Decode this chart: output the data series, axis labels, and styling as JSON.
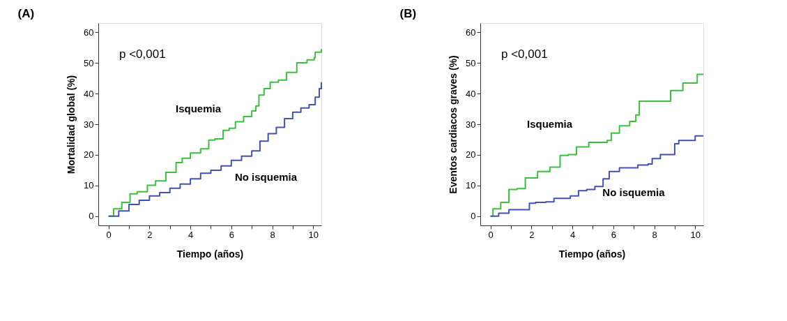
{
  "chart_data": [
    {
      "type": "step",
      "title": "(A)",
      "xlabel": "Tiempo (años)",
      "ylabel": "Mortalidad global (%)",
      "annotations": [
        "p <0,001"
      ],
      "xlim": [
        -0.5,
        10.4
      ],
      "ylim": [
        -3,
        63
      ],
      "xticks": [
        0,
        {
          "value": 1,
          "label": null
        },
        2,
        {
          "value": 3,
          "label": null
        },
        4,
        {
          "value": 5,
          "label": null
        },
        6,
        {
          "value": 7,
          "label": null
        },
        8,
        {
          "value": 9,
          "label": null
        },
        10
      ],
      "yticks": [
        0,
        10,
        20,
        30,
        40,
        50,
        60
      ],
      "grid": false,
      "line_style": "solid",
      "marker": "none",
      "series": [
        {
          "name": "Isquemia",
          "color": "#3cbf3c",
          "x": [
            0,
            0.25,
            0.65,
            1.05,
            1.4,
            1.9,
            2.3,
            2.8,
            3.3,
            3.6,
            4.0,
            4.5,
            4.9,
            5.2,
            5.6,
            5.9,
            6.2,
            6.6,
            7.0,
            7.2,
            7.35,
            7.6,
            7.9,
            8.3,
            8.7,
            9.2,
            9.7,
            10.05,
            10.1,
            10.4
          ],
          "values": [
            0,
            2.4,
            4.5,
            7.3,
            8.0,
            10.1,
            11.5,
            14.3,
            17.5,
            18.9,
            20.6,
            22.0,
            24.8,
            25.2,
            28.0,
            28.7,
            30.8,
            32.5,
            34.3,
            36.0,
            39.5,
            41.6,
            43.7,
            44.4,
            46.9,
            50.0,
            51.0,
            51.7,
            53.5,
            54.5
          ]
        },
        {
          "name": "No isquemia",
          "color": "#4152b3",
          "x": [
            0,
            0.5,
            1.0,
            1.5,
            2.0,
            2.5,
            3.0,
            3.5,
            4.0,
            4.5,
            5.0,
            5.5,
            6.0,
            6.5,
            7.0,
            7.4,
            7.8,
            8.2,
            8.6,
            9.0,
            9.4,
            9.8,
            10.1,
            10.3,
            10.4
          ],
          "values": [
            0,
            1.7,
            3.8,
            5.2,
            6.6,
            7.7,
            9.1,
            10.5,
            12.2,
            14.0,
            15.0,
            16.4,
            18.2,
            19.6,
            21.3,
            24.5,
            26.9,
            29.0,
            31.8,
            33.9,
            35.3,
            36.4,
            38.8,
            41.6,
            43.7
          ]
        }
      ]
    },
    {
      "type": "step",
      "title": "(B)",
      "xlabel": "Tiempo (años)",
      "ylabel": "Eventos cardiacos graves (%)",
      "annotations": [
        "p <0,001"
      ],
      "xlim": [
        -0.5,
        10.4
      ],
      "ylim": [
        -3,
        63
      ],
      "xticks": [
        0,
        {
          "value": 1,
          "label": null
        },
        2,
        {
          "value": 3,
          "label": null
        },
        4,
        {
          "value": 5,
          "label": null
        },
        6,
        {
          "value": 7,
          "label": null
        },
        8,
        {
          "value": 9,
          "label": null
        },
        10
      ],
      "yticks": [
        0,
        10,
        20,
        30,
        40,
        50,
        60
      ],
      "grid": false,
      "line_style": "solid",
      "marker": "none",
      "series": [
        {
          "name": "Isquemia",
          "color": "#3cbf3c",
          "x": [
            0,
            0.12,
            0.5,
            0.9,
            1.3,
            1.7,
            2.3,
            2.9,
            3.4,
            3.8,
            4.2,
            4.8,
            5.7,
            5.9,
            6.3,
            6.8,
            7.1,
            7.27,
            8.8,
            9.4,
            10.1,
            10.4
          ],
          "values": [
            0,
            2.4,
            4.5,
            8.7,
            9.0,
            12.5,
            14.6,
            16.0,
            19.8,
            20.1,
            22.6,
            24.1,
            24.7,
            27.1,
            29.5,
            30.9,
            33.0,
            37.5,
            41.0,
            43.4,
            46.3,
            46.3
          ]
        },
        {
          "name": "No isquemia",
          "color": "#4152b3",
          "x": [
            0,
            0.4,
            0.9,
            1.9,
            2.2,
            2.7,
            3.1,
            3.9,
            4.3,
            4.7,
            5.1,
            5.5,
            5.8,
            6.3,
            7.2,
            7.7,
            7.9,
            8.3,
            9.0,
            9.2,
            10.0,
            10.4
          ],
          "values": [
            0,
            1.0,
            2.1,
            4.2,
            4.5,
            4.7,
            5.8,
            6.6,
            8.3,
            8.7,
            9.7,
            12.2,
            14.6,
            15.8,
            16.7,
            17.0,
            18.8,
            20.1,
            23.6,
            24.7,
            26.2,
            26.2
          ]
        }
      ]
    }
  ]
}
